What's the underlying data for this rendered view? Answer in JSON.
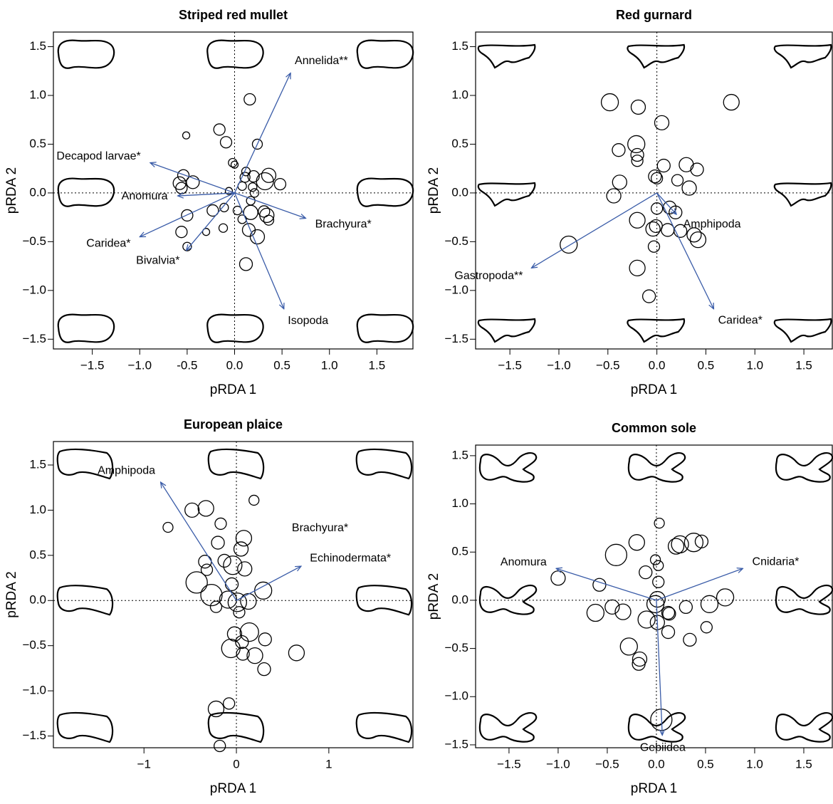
{
  "chart_data": [
    {
      "type": "scatter",
      "title": "Striped red mullet",
      "xlabel": "pRDA 1",
      "ylabel": "pRDA 2",
      "xlim": [
        -1.91,
        1.88
      ],
      "ylim": [
        -1.6,
        1.65
      ],
      "xticks": [
        {
          "value": -1.5,
          "label": "−1.5"
        },
        {
          "value": -1.0,
          "label": "−1.0"
        },
        -0.5,
        {
          "value": 0,
          "label": "0.0"
        },
        0.5,
        {
          "value": 1.0,
          "label": "1.0"
        },
        1.5
      ],
      "yticks": [
        {
          "value": -1.5,
          "label": "−1.5"
        },
        {
          "value": -1.0,
          "label": "−1.0"
        },
        {
          "value": -0.5,
          "label": "−0.5"
        },
        {
          "value": 0,
          "label": "0.0"
        },
        0.5,
        {
          "value": 1.0,
          "label": "1.0"
        },
        1.5
      ],
      "arrow_color": "#3a5ca8",
      "x": [
        0.16,
        -0.51,
        -0.16,
        -0.09,
        0.24,
        -0.02,
        0,
        0.12,
        0.11,
        -0.54,
        -0.44,
        -0.58,
        -0.56,
        0.2,
        0.36,
        0.32,
        0.48,
        -0.06,
        0.08,
        0.19,
        0.21,
        0.17,
        0.17,
        0.31,
        0.34,
        0.36,
        -0.5,
        -0.23,
        -0.11,
        0.03,
        -0.12,
        -0.3,
        -0.56,
        -0.5,
        0.08,
        0.15,
        0.24,
        0.12
      ],
      "y": [
        0.96,
        0.59,
        0.65,
        0.52,
        0.5,
        0.31,
        0.29,
        0.22,
        0.16,
        0.18,
        0.11,
        0.1,
        0.05,
        0.17,
        0.18,
        0.12,
        0.09,
        0.02,
        0.07,
        0.06,
        0,
        -0.08,
        -0.2,
        -0.19,
        -0.23,
        -0.28,
        -0.23,
        -0.18,
        -0.15,
        -0.18,
        -0.36,
        -0.4,
        -0.4,
        -0.55,
        -0.27,
        -0.38,
        -0.45,
        -0.73
      ],
      "sizes": [
        0.8,
        0.5,
        0.8,
        0.8,
        0.7,
        0.6,
        0.5,
        0.6,
        0.7,
        0.8,
        0.9,
        0.9,
        0.8,
        0.8,
        1.0,
        1.2,
        0.8,
        0.5,
        0.6,
        0.6,
        0.6,
        0.6,
        1.0,
        0.8,
        1.0,
        0.7,
        0.8,
        0.8,
        0.6,
        0.6,
        0.6,
        0.5,
        0.8,
        0.6,
        0.6,
        0.9,
        1.0,
        0.9
      ],
      "arrows": [
        {
          "name": "Annelida**",
          "color": "#e8262b",
          "x": 0.59,
          "y": 1.23
        },
        {
          "name": "Decapod larvae*",
          "color": "#e8262b",
          "x": -0.89,
          "y": 0.31
        },
        {
          "name": "Anomura",
          "color": "#3a5ca8",
          "x": -0.6,
          "y": -0.03
        },
        {
          "name": "Caridea*",
          "color": "#e8262b",
          "x": -1.0,
          "y": -0.45
        },
        {
          "name": "Bivalvia*",
          "color": "#e8262b",
          "x": -0.51,
          "y": -0.59
        },
        {
          "name": "Brachyura*",
          "color": "#e8262b",
          "x": 0.75,
          "y": -0.26
        },
        {
          "name": "Isopoda",
          "color": "#3a5ca8",
          "x": 0.52,
          "y": -1.19
        }
      ]
    },
    {
      "type": "scatter",
      "title": "Red gurnard",
      "xlabel": "pRDA 1",
      "ylabel": "pRDA 2",
      "xlim": [
        -1.85,
        1.79
      ],
      "ylim": [
        -1.6,
        1.65
      ],
      "xticks": [
        {
          "value": -1.5,
          "label": "−1.5"
        },
        {
          "value": -1.0,
          "label": "−1.0"
        },
        {
          "value": -0.5,
          "label": "−0.5"
        },
        {
          "value": 0,
          "label": "0.0"
        },
        0.5,
        {
          "value": 1.0,
          "label": "1.0"
        },
        1.5
      ],
      "yticks": [
        {
          "value": -1.5,
          "label": "−1.5"
        },
        {
          "value": -1.0,
          "label": "−1.0"
        },
        {
          "value": -0.5,
          "label": "−0.5"
        },
        {
          "value": 0,
          "label": "0.0"
        },
        0.5,
        {
          "value": 1.0,
          "label": "1.0"
        },
        1.5
      ],
      "arrow_color": "#3a5ca8",
      "x": [
        -0.48,
        -0.19,
        0.76,
        0.05,
        -0.21,
        -0.39,
        -0.2,
        -0.2,
        0.07,
        0.3,
        0.41,
        -0.02,
        0,
        -0.38,
        0.21,
        0.33,
        -0.44,
        0,
        0.13,
        0.19,
        -0.2,
        -0.01,
        -0.04,
        0.11,
        0.24,
        0.38,
        0.42,
        -0.03,
        -0.9,
        -0.2,
        -0.08
      ],
      "y": [
        0.93,
        0.88,
        0.93,
        0.72,
        0.5,
        0.44,
        0.39,
        0.33,
        0.28,
        0.29,
        0.24,
        0.17,
        0.15,
        0.11,
        0.13,
        0.05,
        -0.03,
        -0.16,
        -0.15,
        -0.2,
        -0.28,
        -0.34,
        -0.37,
        -0.38,
        -0.39,
        -0.43,
        -0.48,
        -0.55,
        -0.53,
        -0.77,
        -1.06
      ],
      "sizes": [
        1.2,
        1.0,
        1.1,
        1.0,
        1.2,
        0.9,
        0.9,
        0.8,
        0.9,
        1.0,
        0.9,
        0.9,
        0.8,
        1.0,
        0.8,
        1.0,
        1.0,
        0.8,
        0.9,
        0.9,
        1.1,
        0.9,
        1.0,
        0.9,
        0.9,
        1.0,
        1.1,
        0.8,
        1.2,
        1.1,
        0.9
      ],
      "arrows": [
        {
          "name": "Amphipoda",
          "color": "#3a5ca8",
          "x": 0.2,
          "y": -0.22
        },
        {
          "name": "Gastropoda**",
          "color": "#e8262b",
          "x": -1.28,
          "y": -0.77
        },
        {
          "name": "Caridea*",
          "color": "#e8262b",
          "x": 0.58,
          "y": -1.19
        }
      ]
    },
    {
      "type": "scatter",
      "title": "European plaice",
      "xlabel": "pRDA 1",
      "ylabel": "pRDA 2",
      "xlim": [
        -1.98,
        1.91
      ],
      "ylim": [
        -1.63,
        1.76
      ],
      "xticks": [
        {
          "value": -1,
          "label": "−1"
        },
        0,
        1
      ],
      "yticks": [
        {
          "value": -1.5,
          "label": "−1.5"
        },
        {
          "value": -1.0,
          "label": "−1.0"
        },
        {
          "value": -0.5,
          "label": "−0.5"
        },
        {
          "value": 0,
          "label": "0.0"
        },
        0.5,
        {
          "value": 1.0,
          "label": "1.0"
        },
        1.5
      ],
      "arrow_color": "#3a5ca8",
      "x": [
        -0.48,
        -0.33,
        -0.74,
        0.19,
        -0.17,
        0.08,
        -0.2,
        0.05,
        -0.34,
        -0.13,
        -0.04,
        0.09,
        -0.32,
        -0.43,
        -0.27,
        0.29,
        -0.05,
        -0.09,
        0.01,
        0.13,
        -0.22,
        0.03,
        -0.02,
        0.14,
        0.06,
        -0.06,
        0.2,
        0.07,
        0.31,
        0.65,
        0.3,
        -0.08,
        -0.22,
        -0.18
      ],
      "y": [
        1.0,
        1.02,
        0.81,
        1.11,
        0.85,
        0.69,
        0.64,
        0.57,
        0.43,
        0.44,
        0.39,
        0.35,
        0.34,
        0.2,
        0.06,
        0.11,
        0.18,
        0.01,
        -0.02,
        -0.01,
        -0.07,
        -0.13,
        -0.37,
        -0.35,
        -0.46,
        -0.53,
        -0.61,
        -0.59,
        -0.43,
        -0.58,
        -0.76,
        -1.14,
        -1.2,
        -1.61
      ],
      "sizes": [
        1.0,
        1.1,
        0.7,
        0.7,
        0.8,
        1.1,
        0.9,
        1.0,
        0.9,
        0.9,
        1.3,
        1.0,
        0.8,
        1.5,
        1.5,
        1.2,
        0.9,
        1.2,
        1.3,
        1.1,
        0.8,
        0.8,
        1.0,
        1.3,
        0.9,
        1.3,
        1.1,
        0.9,
        0.9,
        1.1,
        0.9,
        0.8,
        1.1,
        0.8
      ],
      "arrows": [
        {
          "name": "Amphipoda",
          "color": "#3a5ca8",
          "x": -0.82,
          "y": 1.31
        },
        {
          "name": "Brachyura*",
          "color": "#e8262b",
          "x": 0.6,
          "y": 0.77,
          "arrow": false
        },
        {
          "name": "Echinodermata*",
          "color": "#e8262b",
          "x": 0.7,
          "y": 0.38
        }
      ]
    },
    {
      "type": "scatter",
      "title": "Common sole",
      "xlabel": "pRDA 1",
      "ylabel": "pRDA 2",
      "xlim": [
        -1.84,
        1.79
      ],
      "ylim": [
        -1.53,
        1.61
      ],
      "xticks": [
        {
          "value": -1.5,
          "label": "−1.5"
        },
        {
          "value": -1.0,
          "label": "−1.0"
        },
        {
          "value": -0.5,
          "label": "−0.5"
        },
        {
          "value": 0,
          "label": "0.0"
        },
        0.5,
        {
          "value": 1.0,
          "label": "1.0"
        },
        1.5
      ],
      "yticks": [
        {
          "value": -1.5,
          "label": "−1.5"
        },
        {
          "value": -1.0,
          "label": "−1.0"
        },
        {
          "value": -0.5,
          "label": "−0.5"
        },
        {
          "value": 0,
          "label": "0.0"
        },
        0.5,
        {
          "value": 1.0,
          "label": "1.0"
        },
        1.5
      ],
      "arrow_color": "#3a5ca8",
      "x": [
        0.03,
        -0.2,
        0.24,
        0.2,
        0.38,
        0.46,
        -0.41,
        -0.01,
        0.02,
        -0.11,
        0.02,
        -0.58,
        -1.0,
        0.01,
        -0.01,
        -0.45,
        -0.34,
        -0.62,
        -0.1,
        0.01,
        0.13,
        0.12,
        0.3,
        0.54,
        0.7,
        0.12,
        0.34,
        0.51,
        -0.28,
        -0.17,
        -0.18,
        0.05
      ],
      "y": [
        0.8,
        0.6,
        0.58,
        0.56,
        0.6,
        0.61,
        0.47,
        0.42,
        0.36,
        0.29,
        0.19,
        0.16,
        0.23,
        0.01,
        -0.04,
        -0.07,
        -0.12,
        -0.13,
        -0.2,
        -0.23,
        -0.14,
        -0.13,
        -0.07,
        -0.04,
        0.03,
        -0.33,
        -0.41,
        -0.28,
        -0.48,
        -0.61,
        -0.66,
        -1.24
      ],
      "sizes": [
        0.7,
        1.1,
        1.2,
        1.1,
        1.3,
        0.9,
        1.5,
        0.7,
        0.7,
        0.9,
        0.8,
        0.9,
        1.0,
        1.1,
        1.2,
        1.0,
        1.1,
        1.2,
        1.2,
        1.0,
        0.9,
        0.9,
        0.9,
        1.2,
        1.2,
        0.9,
        0.9,
        0.8,
        1.2,
        1.0,
        0.9,
        1.5
      ],
      "arrows": [
        {
          "name": "Anomura",
          "color": "#3a5ca8",
          "x": -1.02,
          "y": 0.33
        },
        {
          "name": "Cnidaria*",
          "color": "#e8262b",
          "x": 0.88,
          "y": 0.33
        },
        {
          "name": "Gebiidea",
          "color": "#3a5ca8",
          "x": 0.06,
          "y": -1.4
        }
      ]
    }
  ]
}
